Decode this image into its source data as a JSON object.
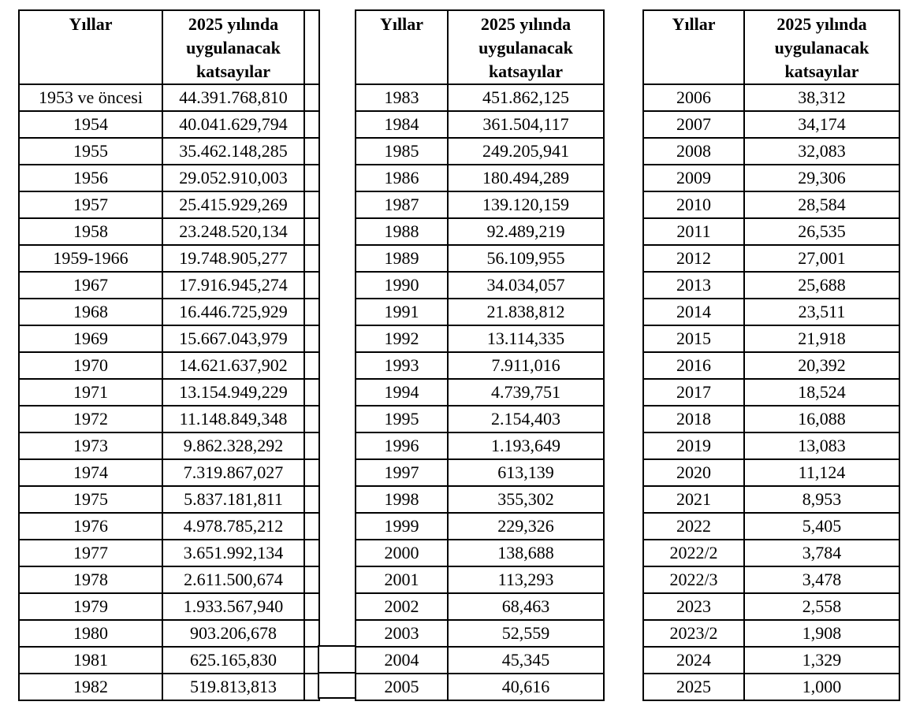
{
  "page": {
    "background": "#ffffff",
    "text_color": "#000000",
    "border_color": "#000000"
  },
  "tables": [
    {
      "name": "coefficients-1953-1982",
      "header": {
        "years": "Yıllar",
        "coefficients": "2025 yılında\nuygulanacak\nkatsayılar"
      },
      "rows": [
        [
          "1953 ve öncesi",
          "44.391.768,810"
        ],
        [
          "1954",
          "40.041.629,794"
        ],
        [
          "1955",
          "35.462.148,285"
        ],
        [
          "1956",
          "29.052.910,003"
        ],
        [
          "1957",
          "25.415.929,269"
        ],
        [
          "1958",
          "23.248.520,134"
        ],
        [
          "1959-1966",
          "19.748.905,277"
        ],
        [
          "1967",
          "17.916.945,274"
        ],
        [
          "1968",
          "16.446.725,929"
        ],
        [
          "1969",
          "15.667.043,979"
        ],
        [
          "1970",
          "14.621.637,902"
        ],
        [
          "1971",
          "13.154.949,229"
        ],
        [
          "1972",
          "11.148.849,348"
        ],
        [
          "1973",
          "9.862.328,292"
        ],
        [
          "1974",
          "7.319.867,027"
        ],
        [
          "1975",
          "5.837.181,811"
        ],
        [
          "1976",
          "4.978.785,212"
        ],
        [
          "1977",
          "3.651.992,134"
        ],
        [
          "1978",
          "2.611.500,674"
        ],
        [
          "1979",
          "1.933.567,940"
        ],
        [
          "1980",
          "903.206,678"
        ],
        [
          "1981",
          "625.165,830"
        ],
        [
          "1982",
          "519.813,813"
        ]
      ]
    },
    {
      "name": "coefficients-1983-2005",
      "header": {
        "years": "Yıllar",
        "coefficients": "2025 yılında\nuygulanacak\nkatsayılar"
      },
      "rows": [
        [
          "1983",
          "451.862,125"
        ],
        [
          "1984",
          "361.504,117"
        ],
        [
          "1985",
          "249.205,941"
        ],
        [
          "1986",
          "180.494,289"
        ],
        [
          "1987",
          "139.120,159"
        ],
        [
          "1988",
          "92.489,219"
        ],
        [
          "1989",
          "56.109,955"
        ],
        [
          "1990",
          "34.034,057"
        ],
        [
          "1991",
          "21.838,812"
        ],
        [
          "1992",
          "13.114,335"
        ],
        [
          "1993",
          "7.911,016"
        ],
        [
          "1994",
          "4.739,751"
        ],
        [
          "1995",
          "2.154,403"
        ],
        [
          "1996",
          "1.193,649"
        ],
        [
          "1997",
          "613,139"
        ],
        [
          "1998",
          "355,302"
        ],
        [
          "1999",
          "229,326"
        ],
        [
          "2000",
          "138,688"
        ],
        [
          "2001",
          "113,293"
        ],
        [
          "2002",
          "68,463"
        ],
        [
          "2003",
          "52,559"
        ],
        [
          "2004",
          "45,345"
        ],
        [
          "2005",
          "40,616"
        ]
      ]
    },
    {
      "name": "coefficients-2006-2025",
      "header": {
        "years": "Yıllar",
        "coefficients": "2025 yılında\nuygulanacak\nkatsayılar"
      },
      "rows": [
        [
          "2006",
          "38,312"
        ],
        [
          "2007",
          "34,174"
        ],
        [
          "2008",
          "32,083"
        ],
        [
          "2009",
          "29,306"
        ],
        [
          "2010",
          "28,584"
        ],
        [
          "2011",
          "26,535"
        ],
        [
          "2012",
          "27,001"
        ],
        [
          "2013",
          "25,688"
        ],
        [
          "2014",
          "23,511"
        ],
        [
          "2015",
          "21,918"
        ],
        [
          "2016",
          "20,392"
        ],
        [
          "2017",
          "18,524"
        ],
        [
          "2018",
          "16,088"
        ],
        [
          "2019",
          "13,083"
        ],
        [
          "2020",
          "11,124"
        ],
        [
          "2021",
          "8,953"
        ],
        [
          "2022",
          "5,405"
        ],
        [
          "2022/2",
          "3,784"
        ],
        [
          "2022/3",
          "3,478"
        ],
        [
          "2023",
          "2,558"
        ],
        [
          "2023/2",
          "1,908"
        ],
        [
          "2024",
          "1,329"
        ],
        [
          "2025",
          "1,000"
        ]
      ]
    }
  ]
}
